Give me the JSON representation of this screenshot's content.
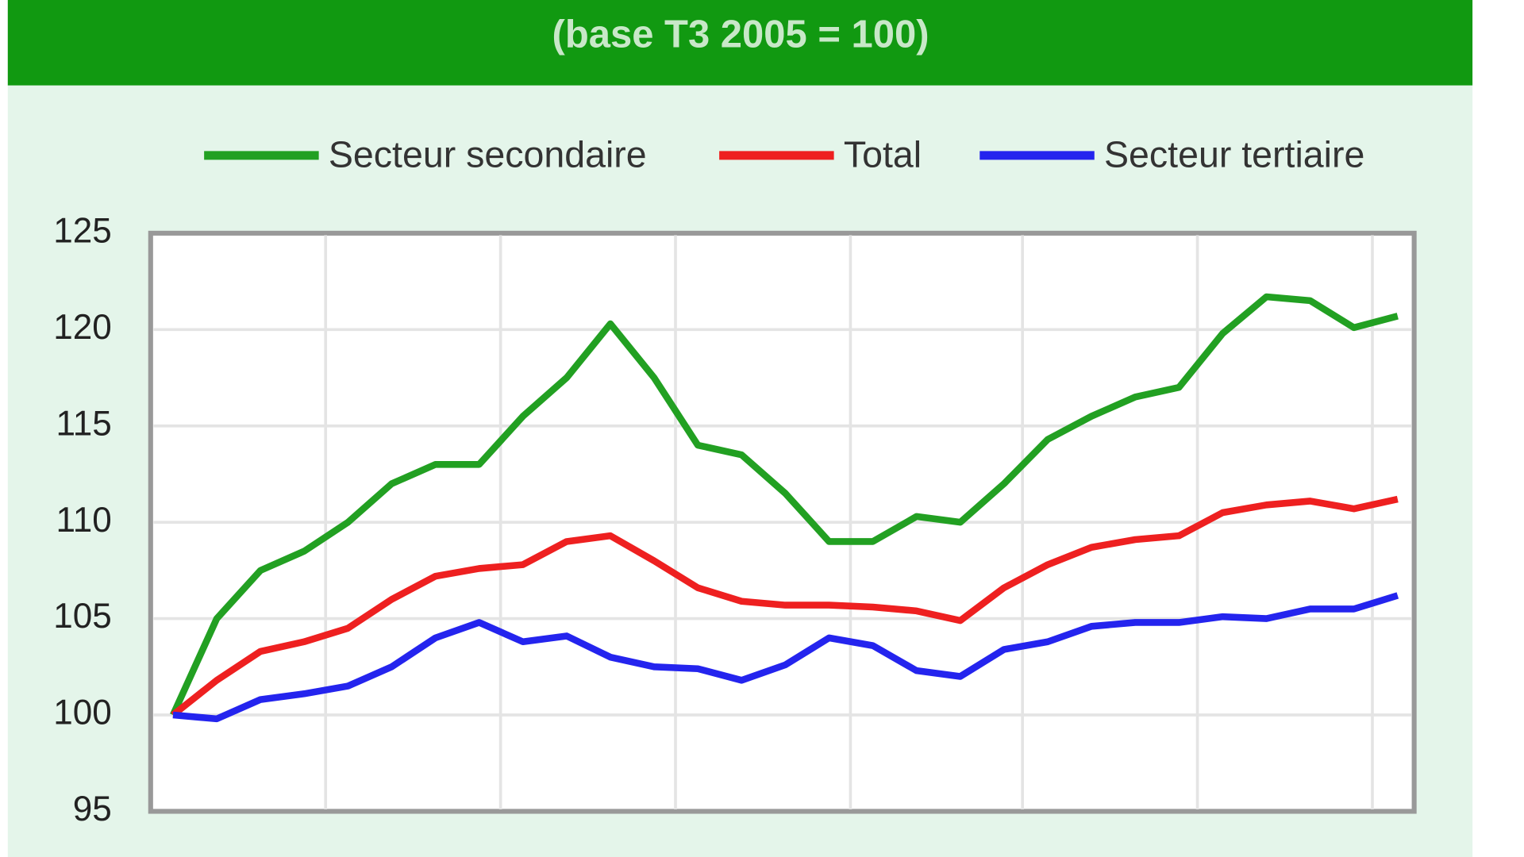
{
  "chart_data": {
    "type": "line",
    "subtitle": "(base T3 2005 = 100)",
    "categories": [
      null,
      null,
      null,
      null,
      null,
      null,
      null,
      null,
      null,
      null,
      null,
      null,
      null,
      null,
      null,
      null,
      null,
      null,
      null,
      null,
      null,
      null,
      null,
      null,
      null,
      null,
      null,
      null,
      null
    ],
    "series": [
      {
        "name": "Secteur secondaire",
        "color": "#22a022",
        "values": [
          100,
          105,
          107.5,
          108.5,
          110,
          112,
          113,
          113,
          115.5,
          117.5,
          120.3,
          117.5,
          114,
          113.5,
          111.5,
          109,
          109,
          110.3,
          110,
          112,
          114.3,
          115.5,
          116.5,
          117,
          119.8,
          121.7,
          121.5,
          120.1,
          120.7
        ]
      },
      {
        "name": "Total",
        "color": "#ee2020",
        "values": [
          100,
          101.8,
          103.3,
          103.8,
          104.5,
          106,
          107.2,
          107.6,
          107.8,
          109,
          109.3,
          108,
          106.6,
          105.9,
          105.7,
          105.7,
          105.6,
          105.4,
          104.9,
          106.6,
          107.8,
          108.7,
          109.1,
          109.3,
          110.5,
          110.9,
          111.1,
          110.7,
          111.2
        ]
      },
      {
        "name": "Secteur tertiaire",
        "color": "#2424ee",
        "values": [
          100,
          99.8,
          100.8,
          101.1,
          101.5,
          102.5,
          104,
          104.8,
          103.8,
          104.1,
          103,
          102.5,
          102.4,
          101.8,
          102.6,
          104,
          103.6,
          102.3,
          102,
          103.4,
          103.8,
          104.6,
          104.8,
          104.8,
          105.1,
          105,
          105.5,
          105.5,
          106.2
        ]
      }
    ],
    "ylim": [
      95,
      125
    ],
    "yticks": [
      95,
      100,
      105,
      110,
      115,
      120,
      125
    ],
    "grid": true
  }
}
